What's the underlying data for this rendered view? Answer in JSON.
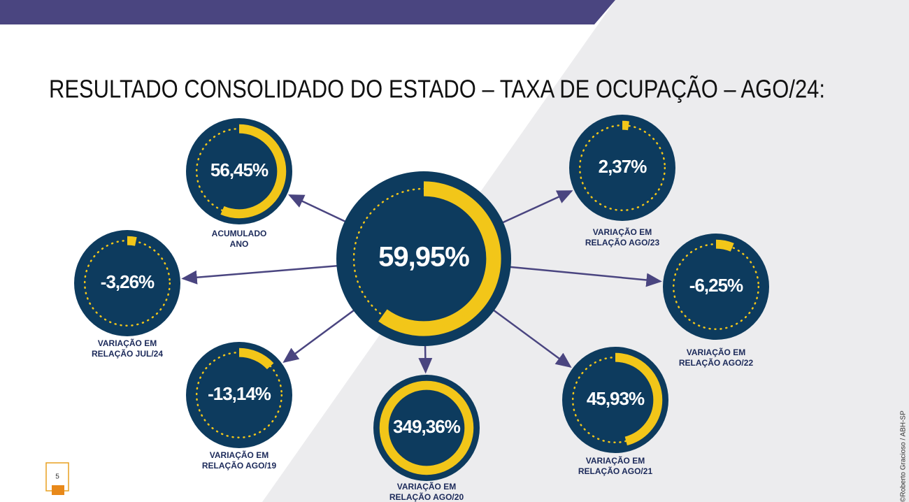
{
  "title": "RESULTADO CONSOLIDADO DO ESTADO – TAXA DE OCUPAÇÃO – AGO/24:",
  "center": {
    "value": 59.95,
    "value_label": "59,95%"
  },
  "nodes": [
    {
      "value": 56.45,
      "value_label": "56,45%",
      "label_lines": [
        "ACUMULADO",
        "ANO"
      ]
    },
    {
      "value": -3.26,
      "value_label": "-3,26%",
      "label_lines": [
        "VARIAÇÃO EM",
        "RELAÇÃO JUL/24"
      ]
    },
    {
      "value": -13.14,
      "value_label": "-13,14%",
      "label_lines": [
        "VARIAÇÃO EM",
        "RELAÇÃO AGO/19"
      ]
    },
    {
      "value": 349.36,
      "value_label": "349,36%",
      "label_lines": [
        "VARIAÇÃO EM",
        "RELAÇÃO AGO/20"
      ]
    },
    {
      "value": 45.93,
      "value_label": "45,93%",
      "label_lines": [
        "VARIAÇÃO EM",
        "RELAÇÃO AGO/21"
      ]
    },
    {
      "value": -6.25,
      "value_label": "-6,25%",
      "label_lines": [
        "VARIAÇÃO EM",
        "RELAÇÃO AGO/22"
      ]
    },
    {
      "value": 2.37,
      "value_label": "2,37%",
      "label_lines": [
        "VARIAÇÃO EM",
        "RELAÇÃO AGO/23"
      ]
    }
  ],
  "page_number": "5",
  "credit": "©Roberto Gracioso / ABH-SP"
}
